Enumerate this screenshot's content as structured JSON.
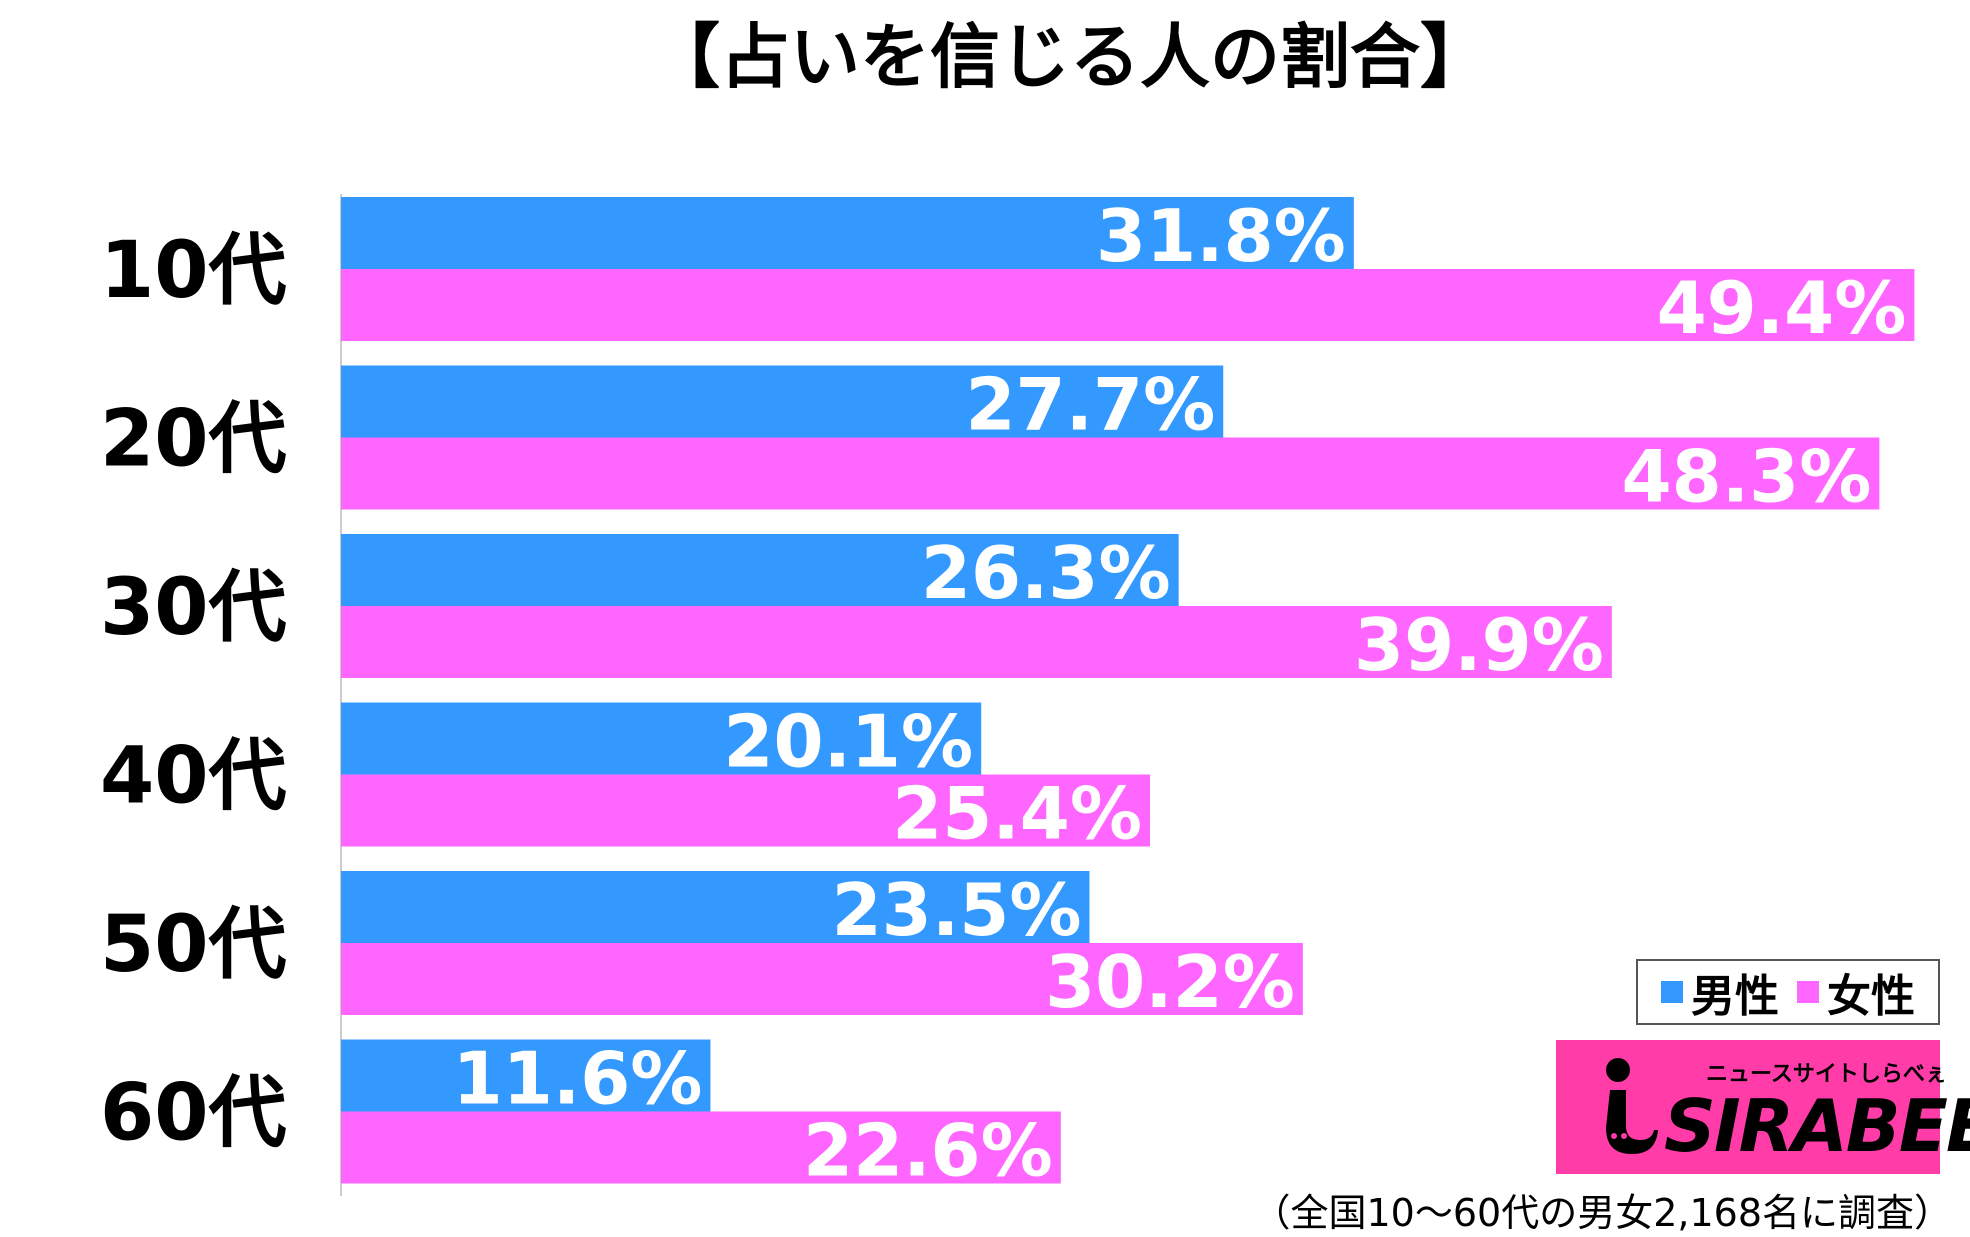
{
  "chart_data": {
    "type": "bar",
    "orientation": "horizontal",
    "title": "【占いを信じる人の割合】",
    "categories": [
      "10代",
      "20代",
      "30代",
      "40代",
      "50代",
      "60代"
    ],
    "series": [
      {
        "name": "男性",
        "color": "#3399ff",
        "values": [
          31.8,
          27.7,
          26.3,
          20.1,
          23.5,
          11.6
        ],
        "labels": [
          "31.8%",
          "27.7%",
          "26.3%",
          "20.1%",
          "23.5%",
          "11.6%"
        ]
      },
      {
        "name": "女性",
        "color": "#ff66ff",
        "values": [
          49.4,
          48.3,
          39.9,
          25.4,
          30.2,
          22.6
        ],
        "labels": [
          "49.4%",
          "48.3%",
          "39.9%",
          "25.4%",
          "30.2%",
          "22.6%"
        ]
      }
    ],
    "value_unit": "%",
    "xlim": [
      0,
      55
    ],
    "grid": false,
    "legend_position": "bottom-right"
  },
  "legend": {
    "male_label": "男性",
    "female_label": "女性"
  },
  "logo": {
    "tagline": "ニュースサイトしらべぇ",
    "name": "SIRABEE",
    "color": "#ff3ca8"
  },
  "source": "（全国10～60代の男女2,168名に調査）"
}
